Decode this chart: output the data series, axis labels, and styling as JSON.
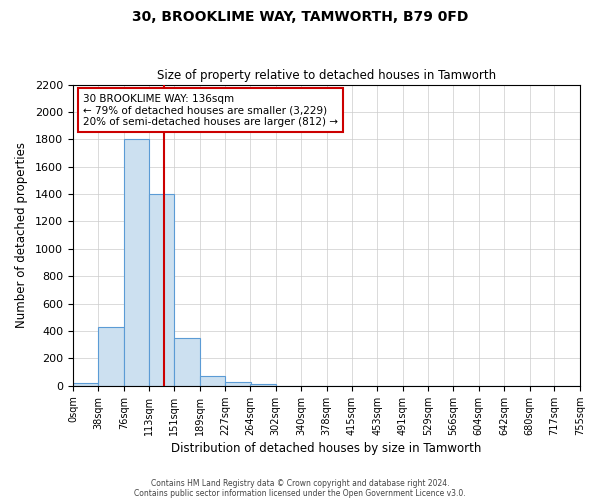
{
  "title": "30, BROOKLIME WAY, TAMWORTH, B79 0FD",
  "subtitle": "Size of property relative to detached houses in Tamworth",
  "xlabel": "Distribution of detached houses by size in Tamworth",
  "ylabel": "Number of detached properties",
  "bin_edges": [
    0,
    38,
    76,
    113,
    151,
    189,
    227,
    264,
    302,
    340,
    378,
    415,
    453,
    491,
    529,
    566,
    604,
    642,
    680,
    717,
    755
  ],
  "bar_heights": [
    20,
    430,
    1800,
    1400,
    350,
    75,
    25,
    15,
    0,
    0,
    0,
    0,
    0,
    0,
    0,
    0,
    0,
    0,
    0,
    0
  ],
  "bar_color": "#cce0f0",
  "bar_edgecolor": "#5b9bd5",
  "property_size": 136,
  "red_line_color": "#cc0000",
  "ylim": [
    0,
    2200
  ],
  "annotation_title": "30 BROOKLIME WAY: 136sqm",
  "annotation_line1": "← 79% of detached houses are smaller (3,229)",
  "annotation_line2": "20% of semi-detached houses are larger (812) →",
  "annotation_box_edgecolor": "#cc0000",
  "annotation_box_facecolor": "#ffffff",
  "footer_line1": "Contains HM Land Registry data © Crown copyright and database right 2024.",
  "footer_line2": "Contains public sector information licensed under the Open Government Licence v3.0.",
  "tick_labels": [
    "0sqm",
    "38sqm",
    "76sqm",
    "113sqm",
    "151sqm",
    "189sqm",
    "227sqm",
    "264sqm",
    "302sqm",
    "340sqm",
    "378sqm",
    "415sqm",
    "453sqm",
    "491sqm",
    "529sqm",
    "566sqm",
    "604sqm",
    "642sqm",
    "680sqm",
    "717sqm",
    "755sqm"
  ],
  "background_color": "#ffffff",
  "grid_color": "#cccccc"
}
